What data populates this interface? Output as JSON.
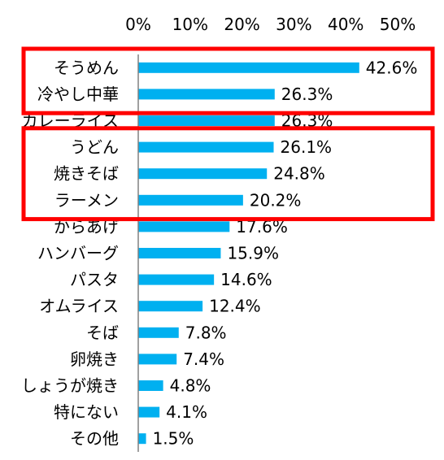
{
  "chart_data": {
    "type": "bar",
    "orientation": "horizontal",
    "categories": [
      "そうめん",
      "冷やし中華",
      "カレーライス",
      "うどん",
      "焼きそば",
      "ラーメン",
      "からあげ",
      "ハンバーグ",
      "パスタ",
      "オムライス",
      "そば",
      "卵焼き",
      "しょうが焼き",
      "特にない",
      "その他"
    ],
    "values": [
      42.6,
      26.3,
      26.3,
      26.1,
      24.8,
      20.2,
      17.6,
      15.9,
      14.6,
      12.4,
      7.8,
      7.4,
      4.8,
      4.1,
      1.5
    ],
    "value_labels": [
      "42.6%",
      "26.3%",
      "26.3%",
      "26.1%",
      "24.8%",
      "20.2%",
      "17.6%",
      "15.9%",
      "14.6%",
      "12.4%",
      "7.8%",
      "7.4%",
      "4.8%",
      "4.1%",
      "1.5%"
    ],
    "ticks": [
      0,
      10,
      20,
      30,
      40,
      50
    ],
    "tick_labels": [
      "0%",
      "10%",
      "20%",
      "30%",
      "40%",
      "50%"
    ],
    "xlim": [
      0,
      50
    ],
    "grid": false,
    "legend": "none",
    "bar_color": "#00b0f0",
    "highlight_color": "#ff0000",
    "highlight_groups": [
      [
        0,
        1
      ],
      [
        3,
        5
      ]
    ]
  }
}
